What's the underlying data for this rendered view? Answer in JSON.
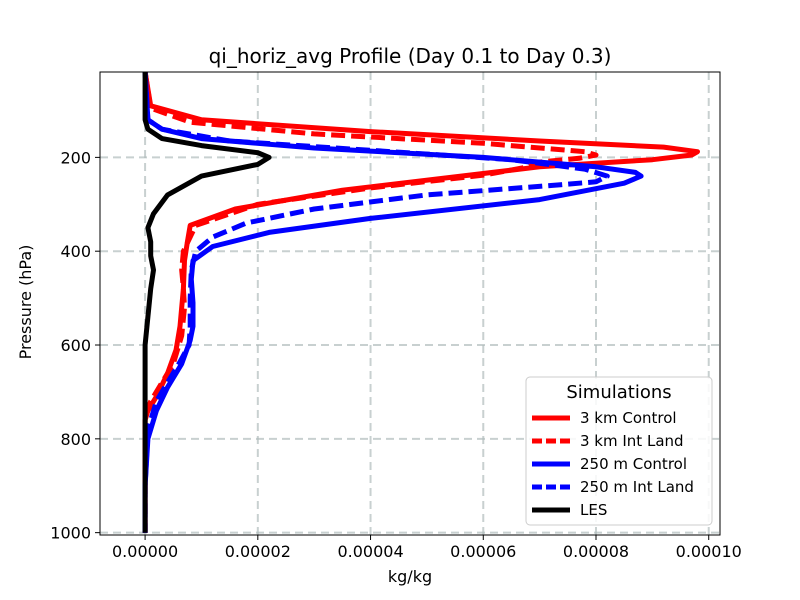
{
  "chart_data": {
    "type": "line",
    "title": "qi_horiz_avg Profile (Day 0.1 to Day 0.3)",
    "xlabel": "kg/kg",
    "ylabel": "Pressure (hPa)",
    "xlim": [
      -8e-06,
      0.000102
    ],
    "ylim": [
      1005,
      18
    ],
    "y_inverted": true,
    "xticks": [
      0,
      2e-05,
      4e-05,
      6e-05,
      8e-05,
      0.0001
    ],
    "xtick_labels": [
      "0.00000",
      "0.00002",
      "0.00004",
      "0.00006",
      "0.00008",
      "0.00010"
    ],
    "yticks": [
      200,
      400,
      600,
      800,
      1000
    ],
    "ytick_labels": [
      "200",
      "400",
      "600",
      "800",
      "1000"
    ],
    "grid": true,
    "legend": {
      "title": "Simulations",
      "placement": "lower right"
    },
    "series": [
      {
        "name": "3 km Control",
        "color": "#ff0000",
        "dash": "solid",
        "x": [
          0,
          1e-06,
          1e-05,
          4e-05,
          7e-05,
          9.2e-05,
          9.8e-05,
          9.7e-05,
          9e-05,
          7e-05,
          3.5e-05,
          1.6e-05,
          8e-06,
          7.5e-06,
          7e-06,
          6.8e-06,
          6.2e-06,
          5.5e-06,
          4e-06,
          2e-06,
          5e-07,
          0,
          0,
          0
        ],
        "y": [
          18,
          90,
          120,
          145,
          165,
          178,
          188,
          195,
          205,
          220,
          270,
          310,
          345,
          380,
          420,
          480,
          560,
          610,
          660,
          710,
          740,
          760,
          900,
          1000
        ]
      },
      {
        "name": "3 km Int Land",
        "color": "#ff0000",
        "dash": "dashed",
        "x": [
          0,
          1e-06,
          8e-06,
          3e-05,
          6e-05,
          7.8e-05,
          8e-05,
          7.7e-05,
          7e-05,
          6.8e-05,
          6e-05,
          4e-05,
          2e-05,
          9e-06,
          6.8e-06,
          6.5e-06,
          6.8e-06,
          7e-06,
          6.5e-06,
          5e-06,
          3e-06,
          1e-06,
          0,
          0,
          0
        ],
        "y": [
          18,
          95,
          125,
          150,
          170,
          188,
          195,
          202,
          210,
          220,
          238,
          265,
          300,
          345,
          400,
          440,
          480,
          520,
          580,
          640,
          680,
          720,
          750,
          900,
          1000
        ]
      },
      {
        "name": "250 m Control",
        "color": "#0000ff",
        "dash": "solid",
        "x": [
          0,
          5e-07,
          3e-06,
          1e-05,
          3e-05,
          6e-05,
          8e-05,
          8.7e-05,
          8.8e-05,
          8.5e-05,
          7e-05,
          4e-05,
          2.2e-05,
          1.2e-05,
          8.5e-06,
          8.2e-06,
          8.5e-06,
          8.5e-06,
          8e-06,
          6.5e-06,
          4e-06,
          2e-06,
          5e-07,
          0,
          0
        ],
        "y": [
          18,
          120,
          140,
          160,
          180,
          200,
          220,
          232,
          240,
          255,
          290,
          330,
          360,
          390,
          420,
          460,
          510,
          560,
          590,
          640,
          690,
          740,
          800,
          900,
          1000
        ]
      },
      {
        "name": "250 m Int Land",
        "color": "#0000ff",
        "dash": "dashed",
        "x": [
          0,
          5e-07,
          3e-06,
          1.5e-05,
          4e-05,
          6.5e-05,
          7.8e-05,
          8.2e-05,
          8e-05,
          7.2e-05,
          5e-05,
          3e-05,
          1.8e-05,
          1.2e-05,
          9e-06,
          8.2e-06,
          8e-06,
          8e-06,
          7.8e-06,
          6e-06,
          4e-06,
          2e-06,
          5e-07,
          0,
          0
        ],
        "y": [
          18,
          120,
          140,
          165,
          185,
          205,
          225,
          240,
          252,
          260,
          280,
          310,
          340,
          370,
          400,
          440,
          500,
          560,
          600,
          640,
          680,
          720,
          780,
          900,
          1000
        ]
      },
      {
        "name": "LES",
        "color": "#000000",
        "dash": "solid",
        "x": [
          0,
          0,
          5e-07,
          3e-06,
          1e-05,
          2e-05,
          2.2e-05,
          2e-05,
          1e-05,
          4e-06,
          1.5e-06,
          5e-07,
          1e-06,
          1e-06,
          1.5e-06,
          1e-06,
          5e-07,
          0,
          0,
          0,
          0
        ],
        "y": [
          18,
          120,
          140,
          160,
          175,
          190,
          200,
          215,
          240,
          280,
          320,
          350,
          380,
          410,
          440,
          480,
          540,
          600,
          700,
          850,
          1000
        ]
      }
    ]
  }
}
